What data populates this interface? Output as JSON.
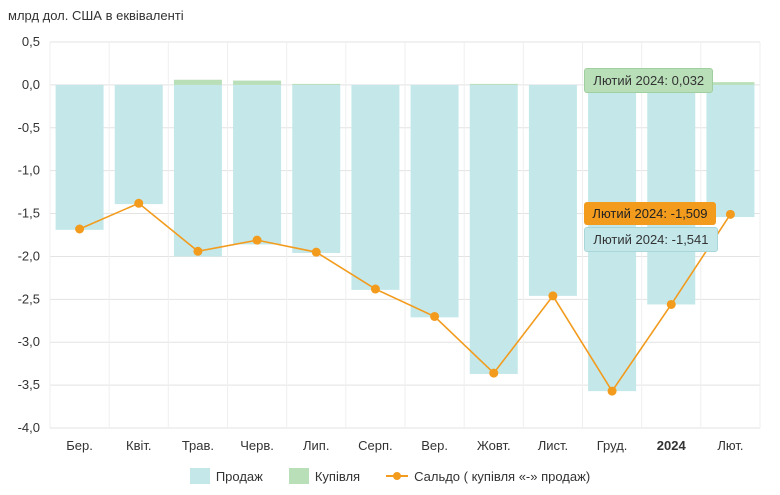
{
  "chart_data": {
    "type": "bar",
    "ylabel": "млрд дол. США в еквіваленті",
    "ylim": [
      -4.0,
      0.5
    ],
    "yticks": [
      "0,5",
      "0,0",
      "-0,5",
      "-1,0",
      "-1,5",
      "-2,0",
      "-2,5",
      "-3,0",
      "-3,5",
      "-4,0"
    ],
    "ytick_values": [
      0.5,
      0.0,
      -0.5,
      -1.0,
      -1.5,
      -2.0,
      -2.5,
      -3.0,
      -3.5,
      -4.0
    ],
    "categories": [
      "Бер.",
      "Квіт.",
      "Трав.",
      "Черв.",
      "Лип.",
      "Серп.",
      "Вер.",
      "Жовт.",
      "Лист.",
      "Груд.",
      "2024",
      "Лют."
    ],
    "bold_categories": [
      "2024"
    ],
    "grid": true,
    "legend_position": "bottom",
    "series": [
      {
        "name": "Продаж",
        "type": "bar",
        "color": "#c4e8ea",
        "values": [
          -1.69,
          -1.39,
          -2.0,
          -1.86,
          -1.96,
          -2.39,
          -2.71,
          -3.37,
          -2.46,
          -3.57,
          -2.56,
          -1.541
        ]
      },
      {
        "name": "Купівля",
        "type": "bar",
        "color": "#b9dfb9",
        "values": [
          0.0,
          0.0,
          0.06,
          0.05,
          0.01,
          0.0,
          0.0,
          0.01,
          0.0,
          0.0,
          0.0,
          0.032
        ]
      },
      {
        "name": "Сальдо ( купівля «-» продаж)",
        "type": "line",
        "color": "#f29b1d",
        "values": [
          -1.68,
          -1.38,
          -1.94,
          -1.81,
          -1.95,
          -2.38,
          -2.7,
          -3.36,
          -2.46,
          -3.57,
          -2.56,
          -1.509
        ]
      }
    ],
    "annotations": [
      {
        "text": "Лютий 2024: 0,032",
        "series": "Купівля",
        "bg": "#b9dfb9",
        "fg": "#333333"
      },
      {
        "text": "Лютий 2024: -1,509",
        "series": "Сальдо ( купівля «-» продаж)",
        "bg": "#f29b1d",
        "fg": "#222222"
      },
      {
        "text": "Лютий 2024: -1,541",
        "series": "Продаж",
        "bg": "#c4e8ea",
        "fg": "#333333"
      }
    ]
  }
}
